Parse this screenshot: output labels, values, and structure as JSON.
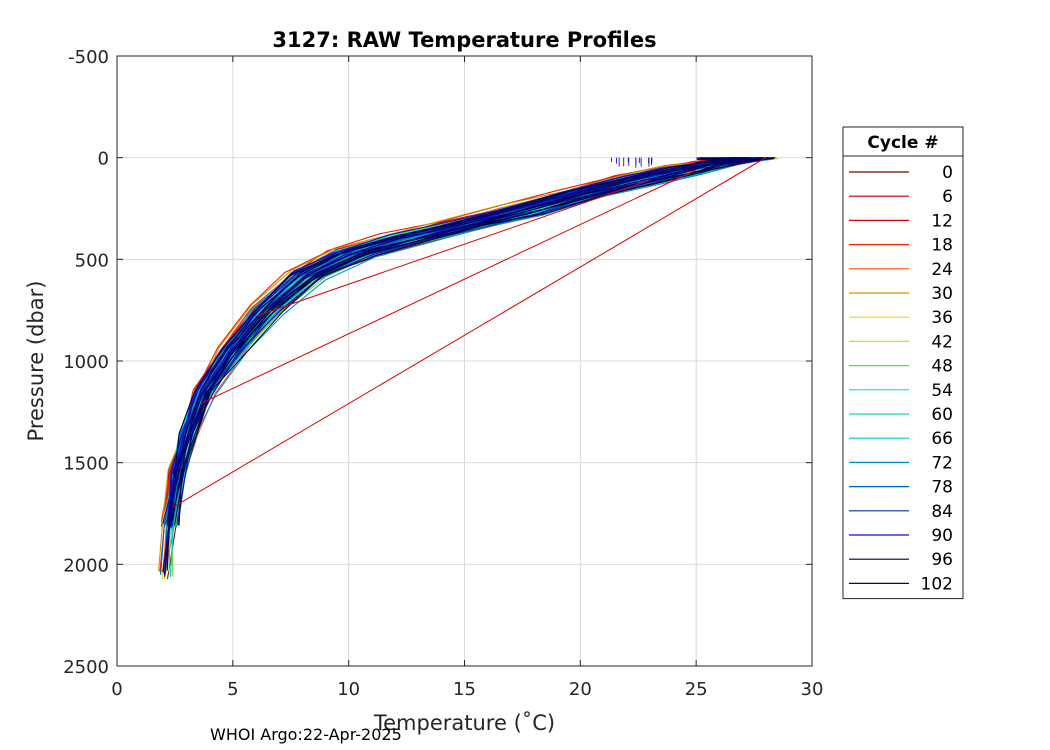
{
  "chart_data": {
    "type": "line",
    "title": "3127: RAW Temperature Profiles",
    "xlabel": "Temperature (˚C)",
    "ylabel": "Pressure (dbar)",
    "xlim": [
      0,
      30
    ],
    "ylim": [
      -500,
      2500
    ],
    "y_reversed": true,
    "grid": true,
    "xticks": [
      "0",
      "5",
      "10",
      "15",
      "20",
      "25",
      "30"
    ],
    "yticks": [
      "-500",
      "0",
      "500",
      "1000",
      "1500",
      "2000",
      "2500"
    ],
    "legend": {
      "title": "Cycle #",
      "placement": "right",
      "entries": [
        {
          "label": "0",
          "color": "#800000"
        },
        {
          "label": "6",
          "color": "#b00000"
        },
        {
          "label": "12",
          "color": "#e00000"
        },
        {
          "label": "18",
          "color": "#f02000"
        },
        {
          "label": "24",
          "color": "#ff5000"
        },
        {
          "label": "30",
          "color": "#c89600"
        },
        {
          "label": "36",
          "color": "#e6dc00"
        },
        {
          "label": "42",
          "color": "#b4ee10"
        },
        {
          "label": "48",
          "color": "#50e630"
        },
        {
          "label": "54",
          "color": "#20e880"
        },
        {
          "label": "60",
          "color": "#10dcb0"
        },
        {
          "label": "66",
          "color": "#00c8e0"
        },
        {
          "label": "72",
          "color": "#0096c8"
        },
        {
          "label": "78",
          "color": "#0060c0"
        },
        {
          "label": "84",
          "color": "#0030a0"
        },
        {
          "label": "90",
          "color": "#1010c8"
        },
        {
          "label": "96",
          "color": "#000040"
        },
        {
          "label": "102",
          "color": "#000078"
        }
      ]
    },
    "profile_shape": {
      "temperature": [
        2.1,
        2.3,
        2.6,
        3.1,
        3.8,
        5.0,
        6.5,
        8.2,
        10.2,
        12.5,
        15.0,
        17.5,
        20.0,
        22.5,
        24.5,
        26.0,
        27.5
      ],
      "pressure": [
        2050,
        1800,
        1550,
        1350,
        1150,
        950,
        750,
        580,
        470,
        400,
        330,
        260,
        180,
        110,
        60,
        25,
        0
      ]
    },
    "spike_segments": [
      {
        "from": [
          28.0,
          0
        ],
        "to": [
          2.4,
          1720
        ]
      },
      {
        "from": [
          25.0,
          60
        ],
        "to": [
          3.6,
          1210
        ]
      },
      {
        "from": [
          23.0,
          110
        ],
        "to": [
          6.0,
          780
        ]
      }
    ]
  },
  "footer": {
    "text": "WHOI Argo:22-Apr-2025"
  }
}
